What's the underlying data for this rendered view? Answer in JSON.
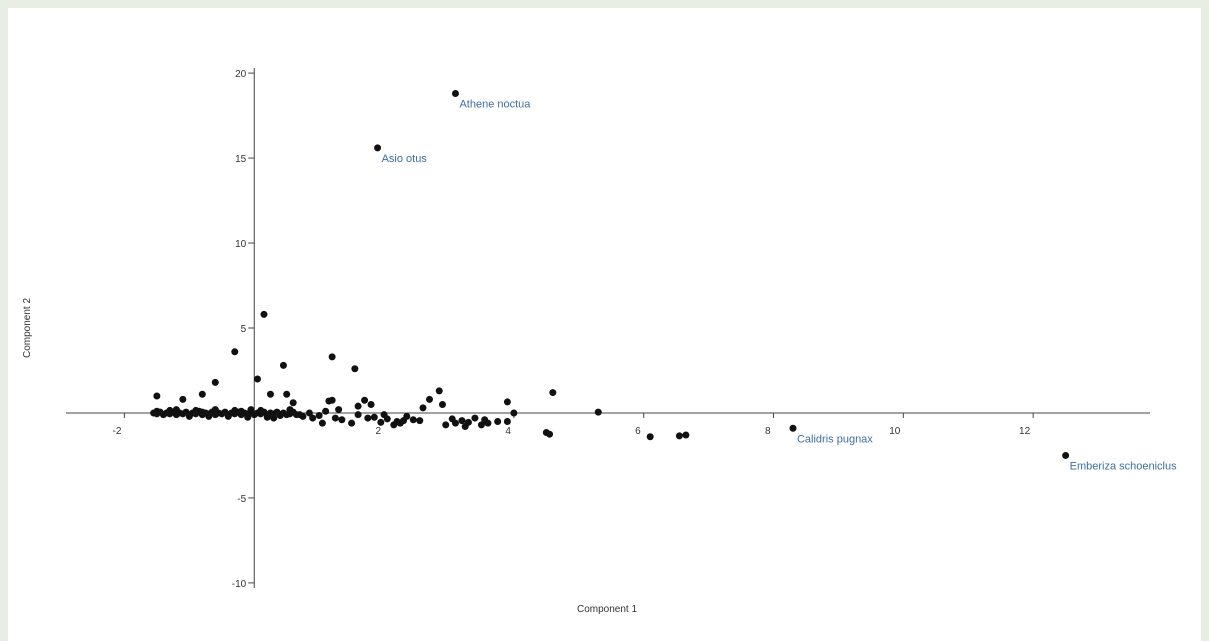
{
  "chart_data": {
    "type": "scatter",
    "xlabel": "Component 1",
    "ylabel": "Component 2",
    "xlim": [
      -2.9,
      13.8
    ],
    "ylim": [
      -10.3,
      20.3
    ],
    "x_ticks": [
      -2,
      2,
      4,
      6,
      8,
      10,
      12
    ],
    "y_ticks": [
      -10,
      -5,
      5,
      10,
      15,
      20
    ],
    "grid": false,
    "point_color": "#111111",
    "label_color": "#3d6fa0",
    "annotations": [
      {
        "text": "Athene noctua",
        "x": 3.1,
        "y": 18.8
      },
      {
        "text": "Asio otus",
        "x": 1.9,
        "y": 15.6
      },
      {
        "text": "Calidris pugnax",
        "x": 8.3,
        "y": -0.9
      },
      {
        "text": "Emberiza schoeniclus",
        "x": 12.5,
        "y": -2.5
      }
    ],
    "points": [
      [
        3.1,
        18.8
      ],
      [
        1.9,
        15.6
      ],
      [
        8.3,
        -0.9
      ],
      [
        12.5,
        -2.5
      ],
      [
        0.15,
        5.8
      ],
      [
        -0.3,
        3.6
      ],
      [
        0.45,
        2.8
      ],
      [
        1.2,
        3.3
      ],
      [
        1.55,
        2.6
      ],
      [
        -0.6,
        1.8
      ],
      [
        0.05,
        2.0
      ],
      [
        -0.8,
        1.1
      ],
      [
        -1.5,
        1.0
      ],
      [
        -1.1,
        0.8
      ],
      [
        0.25,
        1.1
      ],
      [
        0.5,
        1.1
      ],
      [
        0.6,
        0.6
      ],
      [
        0.55,
        0.2
      ],
      [
        1.15,
        0.7
      ],
      [
        1.2,
        0.75
      ],
      [
        1.7,
        0.75
      ],
      [
        1.8,
        0.5
      ],
      [
        1.6,
        0.4
      ],
      [
        2.85,
        1.3
      ],
      [
        2.7,
        0.8
      ],
      [
        2.9,
        0.5
      ],
      [
        2.6,
        0.3
      ],
      [
        3.9,
        0.65
      ],
      [
        4.6,
        1.2
      ],
      [
        5.3,
        0.05
      ],
      [
        4.0,
        0.0
      ],
      [
        6.1,
        -1.4
      ],
      [
        6.55,
        -1.35
      ],
      [
        6.65,
        -1.3
      ],
      [
        4.5,
        -1.15
      ],
      [
        4.55,
        -1.25
      ],
      [
        3.9,
        -0.5
      ],
      [
        3.6,
        -0.6
      ],
      [
        3.5,
        -0.7
      ],
      [
        3.3,
        -0.55
      ],
      [
        3.2,
        -0.45
      ],
      [
        3.05,
        -0.35
      ],
      [
        2.95,
        -0.7
      ],
      [
        3.1,
        -0.6
      ],
      [
        2.2,
        -0.5
      ],
      [
        2.3,
        -0.45
      ],
      [
        2.15,
        -0.7
      ],
      [
        2.45,
        -0.4
      ],
      [
        2.05,
        -0.35
      ],
      [
        1.95,
        -0.55
      ],
      [
        1.85,
        -0.25
      ],
      [
        1.5,
        -0.6
      ],
      [
        1.35,
        -0.4
      ],
      [
        1.25,
        -0.3
      ],
      [
        1.05,
        -0.6
      ],
      [
        0.9,
        -0.3
      ],
      [
        0.75,
        -0.2
      ],
      [
        1.1,
        0.1
      ],
      [
        1.3,
        0.2
      ],
      [
        0.85,
        0.0
      ],
      [
        0.7,
        -0.1
      ],
      [
        2.0,
        -0.1
      ],
      [
        3.4,
        -0.3
      ],
      [
        3.75,
        -0.5
      ],
      [
        2.35,
        -0.2
      ],
      [
        1.6,
        -0.1
      ],
      [
        1.0,
        -0.15
      ],
      [
        0.4,
        -0.15
      ],
      [
        0.3,
        -0.3
      ],
      [
        -1.55,
        0.0
      ],
      [
        -1.5,
        -0.05
      ],
      [
        -1.45,
        0.05
      ],
      [
        -1.4,
        -0.1
      ],
      [
        -1.35,
        0.0
      ],
      [
        -1.3,
        -0.05
      ],
      [
        -1.25,
        0.05
      ],
      [
        -1.2,
        -0.1
      ],
      [
        -1.15,
        0.0
      ],
      [
        -1.1,
        -0.05
      ],
      [
        -1.05,
        0.05
      ],
      [
        -1.0,
        -0.1
      ],
      [
        -0.95,
        0.0
      ],
      [
        -0.9,
        -0.05
      ],
      [
        -0.85,
        0.1
      ],
      [
        -0.8,
        -0.1
      ],
      [
        -0.75,
        0.0
      ],
      [
        -0.7,
        -0.05
      ],
      [
        -0.65,
        0.05
      ],
      [
        -0.6,
        -0.1
      ],
      [
        -0.55,
        0.0
      ],
      [
        -0.5,
        -0.05
      ],
      [
        -0.45,
        0.05
      ],
      [
        -0.4,
        -0.1
      ],
      [
        -0.35,
        0.0
      ],
      [
        -0.3,
        -0.05
      ],
      [
        -0.25,
        0.05
      ],
      [
        -0.2,
        -0.1
      ],
      [
        -0.15,
        0.0
      ],
      [
        -0.1,
        -0.05
      ],
      [
        -0.05,
        0.05
      ],
      [
        0.0,
        -0.1
      ],
      [
        0.05,
        0.0
      ],
      [
        0.1,
        -0.05
      ],
      [
        0.15,
        0.05
      ],
      [
        0.2,
        -0.1
      ],
      [
        0.25,
        0.0
      ],
      [
        0.3,
        -0.05
      ],
      [
        0.35,
        0.05
      ],
      [
        0.4,
        -0.1
      ],
      [
        0.45,
        0.0
      ],
      [
        0.5,
        -0.1
      ],
      [
        0.55,
        -0.05
      ],
      [
        0.6,
        0.05
      ],
      [
        0.65,
        -0.1
      ],
      [
        -1.2,
        0.2
      ],
      [
        -0.9,
        0.15
      ],
      [
        -0.6,
        0.2
      ],
      [
        -0.3,
        0.15
      ],
      [
        -0.05,
        0.2
      ],
      [
        -1.0,
        -0.2
      ],
      [
        -0.7,
        -0.2
      ],
      [
        -0.4,
        -0.2
      ],
      [
        -0.1,
        -0.25
      ],
      [
        0.2,
        -0.25
      ],
      [
        -1.5,
        0.1
      ],
      [
        -1.3,
        0.15
      ],
      [
        -0.8,
        0.05
      ],
      [
        -0.2,
        0.1
      ],
      [
        0.1,
        0.15
      ],
      [
        1.75,
        -0.3
      ],
      [
        2.25,
        -0.6
      ],
      [
        2.55,
        -0.45
      ],
      [
        3.25,
        -0.8
      ],
      [
        3.55,
        -0.4
      ]
    ]
  }
}
